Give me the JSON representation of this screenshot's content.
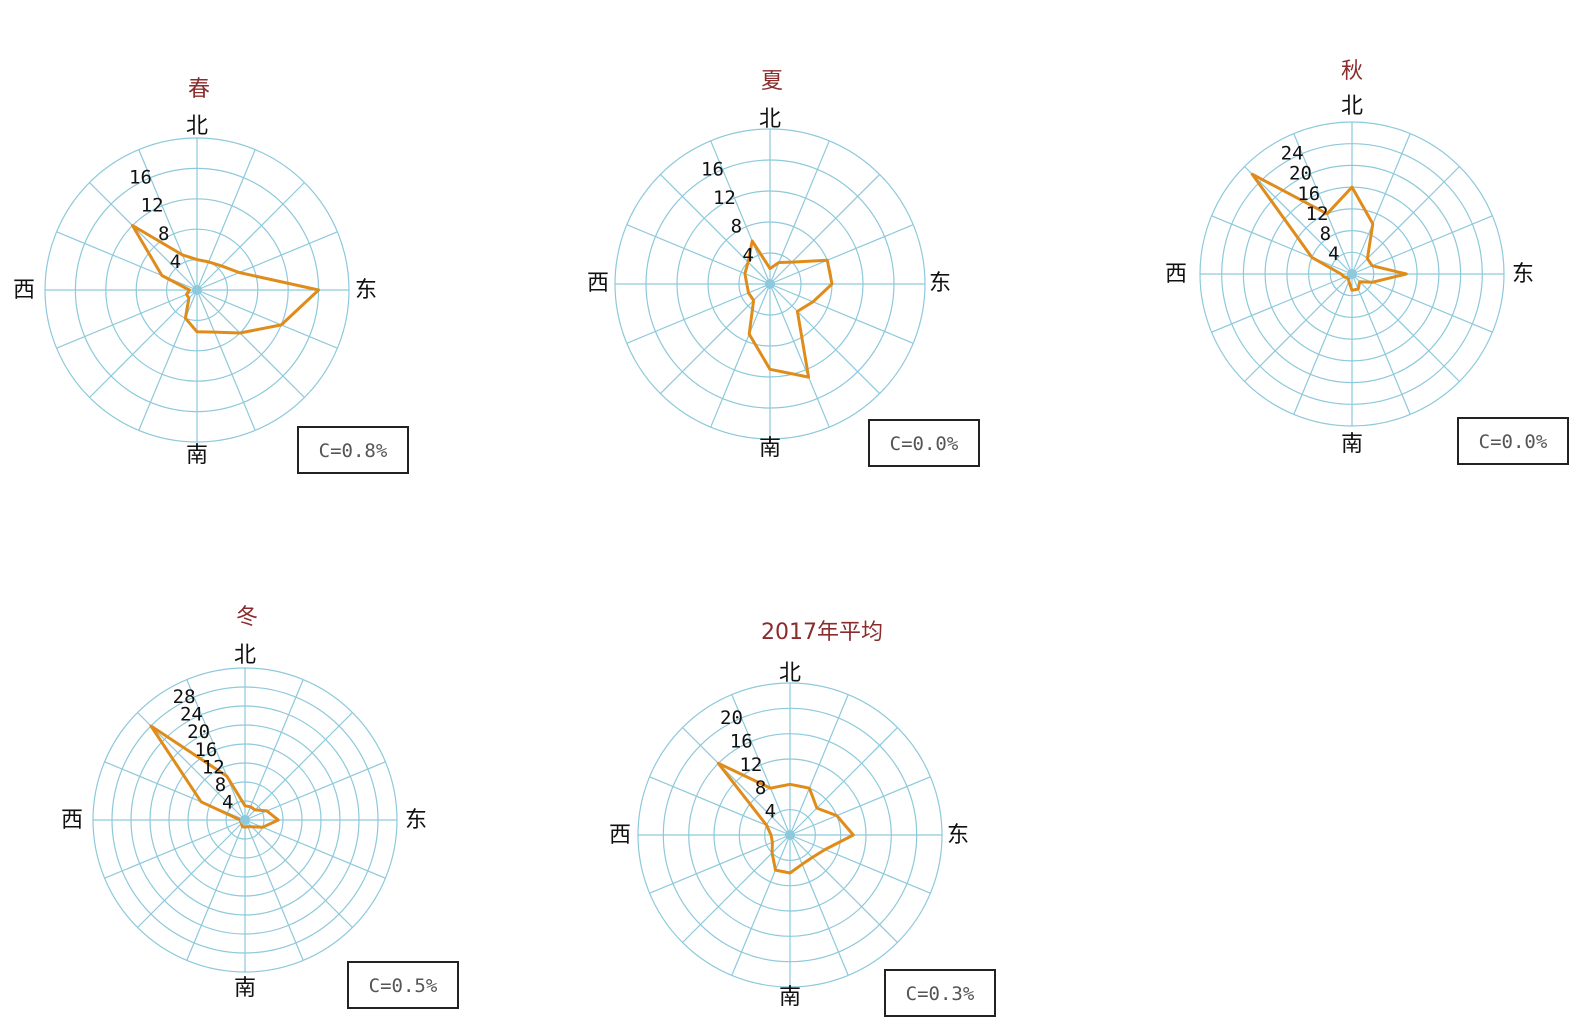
{
  "colors": {
    "grid": "#8dc9dc",
    "rose": "#e08c1a",
    "title": "#8b2c2c",
    "text": "#111111",
    "calm_text": "#555555"
  },
  "chart_data": [
    {
      "type": "radar",
      "title": "春",
      "directions": {
        "north": "北",
        "east": "东",
        "south": "南",
        "west": "西"
      },
      "axis_ticks": [
        4,
        8,
        12,
        16
      ],
      "rmax": 20,
      "calm": "C=0.8%",
      "sectors": [
        "N",
        "NNE",
        "NE",
        "ENE",
        "E",
        "ESE",
        "SE",
        "SSE",
        "S",
        "SSW",
        "SW",
        "WSW",
        "W",
        "WNW",
        "NW",
        "NNW"
      ],
      "values": [
        4,
        4,
        4.5,
        6,
        16,
        12,
        8,
        6,
        5.5,
        4,
        1.5,
        1.5,
        1,
        5,
        12,
        5
      ]
    },
    {
      "type": "radar",
      "title": "夏",
      "directions": {
        "north": "北",
        "east": "东",
        "south": "南",
        "west": "西"
      },
      "axis_ticks": [
        4,
        8,
        12,
        16
      ],
      "rmax": 20,
      "calm": "C=0.0%",
      "sectors": [
        "N",
        "NNE",
        "NE",
        "ENE",
        "E",
        "ESE",
        "SE",
        "SSE",
        "S",
        "SSW",
        "SW",
        "WSW",
        "W",
        "WNW",
        "NW",
        "NNW"
      ],
      "values": [
        2,
        3,
        4,
        8,
        8,
        6,
        5,
        13,
        11,
        7,
        3,
        3,
        3,
        3.5,
        4,
        6
      ]
    },
    {
      "type": "radar",
      "title": "秋",
      "directions": {
        "north": "北",
        "east": "东",
        "south": "南",
        "west": "西"
      },
      "axis_ticks": [
        4,
        8,
        12,
        16,
        20,
        24
      ],
      "rmax": 28,
      "calm": "C=0.0%",
      "sectors": [
        "N",
        "NNE",
        "NE",
        "ENE",
        "E",
        "ESE",
        "SE",
        "SSE",
        "S",
        "SSW",
        "SW",
        "WSW",
        "W",
        "WNW",
        "NW",
        "NNW"
      ],
      "values": [
        16,
        10,
        4,
        4,
        10,
        4,
        2,
        3,
        3,
        1.5,
        1,
        1.5,
        2,
        8,
        26,
        12
      ]
    },
    {
      "type": "radar",
      "title": "冬",
      "directions": {
        "north": "北",
        "east": "东",
        "south": "南",
        "west": "西"
      },
      "axis_ticks": [
        4,
        8,
        12,
        16,
        20,
        24,
        28
      ],
      "rmax": 32,
      "calm": "C=0.5%",
      "sectors": [
        "N",
        "NNE",
        "NE",
        "ENE",
        "E",
        "ESE",
        "SE",
        "SSE",
        "S",
        "SSW",
        "SW",
        "WSW",
        "W",
        "WNW",
        "NW",
        "NNW"
      ],
      "values": [
        3,
        3,
        3,
        5,
        7,
        4,
        2,
        1.5,
        1.5,
        1.5,
        1,
        1,
        1,
        10,
        28,
        10
      ]
    },
    {
      "type": "radar",
      "title": "2017年平均",
      "directions": {
        "north": "北",
        "east": "东",
        "south": "南",
        "west": "西"
      },
      "axis_ticks": [
        4,
        8,
        12,
        16,
        20
      ],
      "rmax": 24,
      "calm": "C=0.3%",
      "sectors": [
        "N",
        "NNE",
        "NE",
        "ENE",
        "E",
        "ESE",
        "SE",
        "SSE",
        "S",
        "SSW",
        "SW",
        "WSW",
        "W",
        "WNW",
        "NW",
        "NNW"
      ],
      "values": [
        8,
        8,
        6,
        8,
        10,
        6,
        5,
        5,
        6,
        6,
        4,
        3,
        3,
        4,
        16,
        8
      ]
    }
  ]
}
